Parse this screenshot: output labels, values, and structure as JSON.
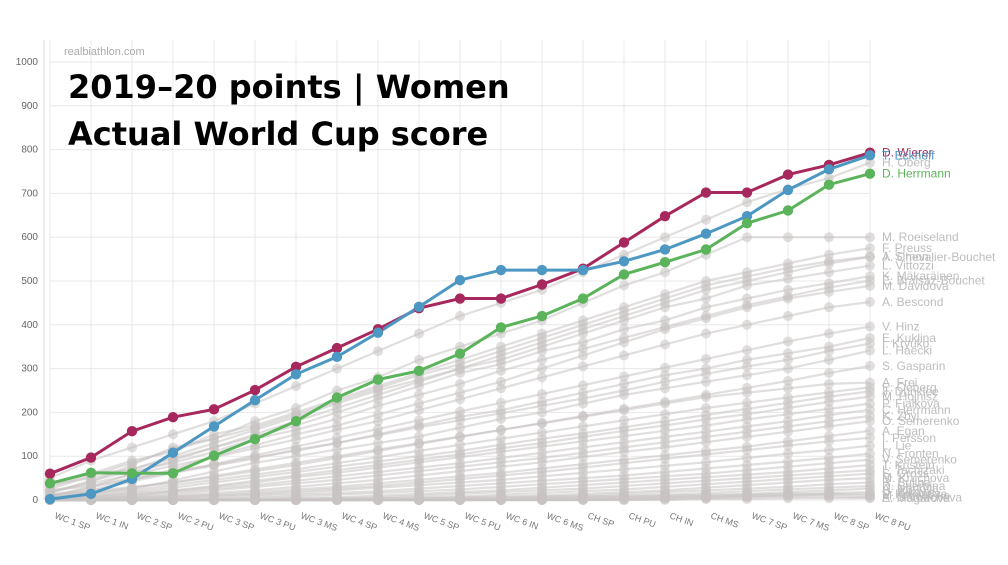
{
  "watermark": "realbiathlon.com",
  "title_line1": "2019–20 points  |  Women",
  "title_line2": "Actual World Cup score",
  "colors": {
    "wierer": "#a7285c",
    "eckhoff": "#4d97c3",
    "herrmann": "#5bb35b",
    "background_series": "#c9c3c3",
    "background_label": "#bdbdbd",
    "grid": "#e8e8e8"
  },
  "chart_data": {
    "type": "line",
    "title": "2019–20 points | Women — Actual World Cup score",
    "xlabel": "",
    "ylabel": "",
    "ylim": [
      0,
      1000
    ],
    "yticks": [
      0,
      100,
      200,
      300,
      400,
      500,
      600,
      700,
      800,
      900,
      1000
    ],
    "grid": true,
    "categories": [
      "WC 1 SP",
      "WC 1 IN",
      "WC 2 SP",
      "WC 2 PU",
      "WC 3 SP",
      "WC 3 PU",
      "WC 3 MS",
      "WC 4 SP",
      "WC 4 MS",
      "WC 5 SP",
      "WC 5 PU",
      "WC 6 IN",
      "WC 6 MS",
      "CH SP",
      "CH PU",
      "CH IN",
      "CH MS",
      "WC 7 SP",
      "WC 7 MS",
      "WC 8 SP",
      "WC 8 PU"
    ],
    "series": [
      {
        "name": "D. Wierer",
        "highlight": true,
        "color": "#a7285c",
        "values": [
          60,
          97,
          157,
          189,
          207,
          251,
          304,
          347,
          390,
          438,
          460,
          460,
          492,
          528,
          588,
          648,
          702,
          702,
          743,
          765,
          793
        ]
      },
      {
        "name": "T. Eckhoff",
        "highlight": true,
        "color": "#4d97c3",
        "values": [
          2,
          14,
          48,
          108,
          168,
          228,
          287,
          327,
          382,
          441,
          502,
          525,
          525,
          525,
          545,
          572,
          608,
          648,
          708,
          755,
          787
        ]
      },
      {
        "name": "D. Herrmann",
        "highlight": true,
        "color": "#5bb35b",
        "values": [
          38,
          62,
          61,
          61,
          101,
          139,
          180,
          234,
          275,
          295,
          334,
          394,
          420,
          460,
          515,
          543,
          572,
          632,
          661,
          720,
          745
        ]
      },
      {
        "name": "H. Öberg",
        "values": [
          50,
          90,
          120,
          150,
          180,
          220,
          260,
          300,
          340,
          380,
          420,
          450,
          480,
          520,
          560,
          600,
          640,
          680,
          710,
          735,
          770
        ]
      },
      {
        "name": "M. Roeiseland",
        "values": [
          20,
          40,
          80,
          120,
          140,
          180,
          210,
          250,
          280,
          320,
          350,
          380,
          410,
          450,
          490,
          520,
          560,
          600,
          600,
          600,
          600
        ]
      },
      {
        "name": "F. Preuss",
        "values": [
          30,
          60,
          90,
          110,
          150,
          170,
          200,
          230,
          260,
          290,
          320,
          350,
          380,
          410,
          440,
          470,
          500,
          520,
          540,
          560,
          575
        ]
      },
      {
        "name": "J. Simon",
        "values": [
          25,
          55,
          85,
          115,
          140,
          165,
          195,
          225,
          255,
          285,
          310,
          340,
          370,
          400,
          430,
          460,
          490,
          510,
          530,
          545,
          556
        ]
      },
      {
        "name": "A. Chevalier-Bouchet",
        "values": [
          40,
          60,
          70,
          100,
          130,
          160,
          190,
          220,
          250,
          275,
          300,
          330,
          360,
          390,
          420,
          450,
          480,
          500,
          520,
          540,
          555
        ]
      },
      {
        "name": "L. Vittozzi",
        "values": [
          10,
          30,
          60,
          90,
          120,
          150,
          180,
          210,
          240,
          270,
          300,
          320,
          350,
          380,
          410,
          440,
          460,
          490,
          505,
          520,
          535
        ]
      },
      {
        "name": "K. Mäkaräinen",
        "values": [
          35,
          50,
          70,
          95,
          120,
          145,
          170,
          200,
          230,
          260,
          290,
          310,
          340,
          360,
          390,
          410,
          440,
          460,
          480,
          495,
          511
        ]
      },
      {
        "name": "E. Braisaz-Bouchet",
        "values": [
          15,
          45,
          65,
          85,
          110,
          140,
          160,
          185,
          215,
          240,
          265,
          295,
          320,
          345,
          370,
          395,
          420,
          445,
          465,
          485,
          501
        ]
      },
      {
        "name": "M. Davidova",
        "values": [
          5,
          20,
          45,
          70,
          100,
          125,
          150,
          170,
          195,
          220,
          245,
          270,
          300,
          330,
          360,
          390,
          415,
          440,
          460,
          475,
          489
        ]
      },
      {
        "name": "A. Bescond",
        "values": [
          18,
          38,
          58,
          78,
          98,
          118,
          138,
          160,
          180,
          205,
          230,
          255,
          280,
          305,
          330,
          355,
          380,
          400,
          420,
          440,
          452
        ]
      },
      {
        "name": "V. Hinz",
        "values": [
          12,
          22,
          42,
          62,
          82,
          102,
          122,
          142,
          162,
          182,
          202,
          222,
          242,
          262,
          282,
          302,
          322,
          342,
          362,
          380,
          396
        ]
      },
      {
        "name": "E. Kuklina",
        "values": [
          8,
          28,
          48,
          62,
          78,
          95,
          115,
          130,
          150,
          170,
          190,
          205,
          225,
          245,
          265,
          285,
          300,
          320,
          335,
          350,
          370
        ]
      },
      {
        "name": "I. Kryuko",
        "values": [
          22,
          32,
          50,
          66,
          80,
          98,
          112,
          130,
          148,
          166,
          182,
          198,
          215,
          232,
          250,
          270,
          288,
          305,
          320,
          340,
          357
        ]
      },
      {
        "name": "L. Haecki",
        "values": [
          5,
          15,
          25,
          45,
          65,
          85,
          100,
          115,
          130,
          145,
          165,
          185,
          200,
          220,
          240,
          255,
          270,
          285,
          300,
          320,
          341
        ]
      },
      {
        "name": "S. Gasparin",
        "values": [
          6,
          16,
          28,
          40,
          52,
          66,
          80,
          96,
          112,
          128,
          144,
          160,
          176,
          192,
          208,
          224,
          240,
          256,
          272,
          290,
          306
        ]
      },
      {
        "name": "A. Frei",
        "values": [
          10,
          20,
          30,
          40,
          55,
          70,
          85,
          100,
          115,
          130,
          145,
          160,
          175,
          190,
          205,
          220,
          235,
          245,
          255,
          265,
          268
        ]
      },
      {
        "name": "E. Oeberg",
        "values": [
          4,
          12,
          22,
          34,
          46,
          58,
          70,
          84,
          98,
          112,
          126,
          140,
          154,
          168,
          182,
          196,
          210,
          222,
          234,
          246,
          257
        ]
      },
      {
        "name": "J. Dunklee",
        "values": [
          2,
          8,
          18,
          28,
          40,
          52,
          64,
          76,
          88,
          100,
          112,
          126,
          140,
          152,
          166,
          180,
          194,
          208,
          222,
          236,
          248
        ]
      },
      {
        "name": "M. Hojnisz",
        "values": [
          3,
          9,
          15,
          22,
          32,
          44,
          56,
          68,
          80,
          92,
          104,
          118,
          130,
          144,
          158,
          170,
          184,
          196,
          210,
          224,
          236
        ]
      },
      {
        "name": "P. Fialkova",
        "values": [
          0,
          6,
          12,
          20,
          30,
          40,
          52,
          62,
          74,
          86,
          98,
          110,
          122,
          134,
          146,
          158,
          170,
          184,
          196,
          208,
          220
        ]
      },
      {
        "name": "C. Herrmann",
        "values": [
          0,
          4,
          10,
          18,
          26,
          34,
          44,
          54,
          64,
          74,
          84,
          96,
          108,
          120,
          132,
          144,
          156,
          168,
          180,
          194,
          206
        ]
      },
      {
        "name": "K. Zbyl",
        "values": [
          0,
          3,
          8,
          14,
          22,
          30,
          38,
          46,
          56,
          66,
          76,
          86,
          96,
          108,
          120,
          132,
          144,
          156,
          168,
          180,
          192
        ]
      },
      {
        "name": "O. Semerenko",
        "values": [
          0,
          2,
          6,
          10,
          16,
          22,
          30,
          38,
          46,
          56,
          66,
          76,
          86,
          98,
          110,
          120,
          132,
          144,
          156,
          168,
          180
        ]
      },
      {
        "name": "A. Egan",
        "values": [
          0,
          0,
          4,
          8,
          12,
          18,
          24,
          30,
          38,
          46,
          54,
          62,
          72,
          82,
          92,
          102,
          112,
          122,
          134,
          146,
          158
        ]
      },
      {
        "name": "I. Persson",
        "values": [
          0,
          0,
          2,
          6,
          10,
          14,
          20,
          26,
          32,
          40,
          48,
          56,
          64,
          74,
          84,
          94,
          104,
          114,
          124,
          134,
          142
        ]
      },
      {
        "name": "L. Lie",
        "values": [
          0,
          0,
          0,
          4,
          8,
          12,
          16,
          22,
          28,
          34,
          40,
          46,
          54,
          62,
          70,
          78,
          86,
          96,
          106,
          114,
          124
        ]
      },
      {
        "name": "N. Fronten",
        "values": [
          0,
          0,
          0,
          2,
          4,
          8,
          12,
          16,
          20,
          26,
          32,
          38,
          44,
          50,
          56,
          64,
          72,
          80,
          88,
          96,
          106
        ]
      },
      {
        "name": "V. Semerenko",
        "values": [
          0,
          0,
          0,
          0,
          2,
          4,
          8,
          12,
          16,
          20,
          24,
          30,
          36,
          42,
          48,
          54,
          60,
          68,
          76,
          84,
          92
        ]
      },
      {
        "name": "T. Kristejn",
        "values": [
          0,
          0,
          0,
          0,
          0,
          2,
          4,
          6,
          10,
          14,
          18,
          22,
          28,
          34,
          40,
          46,
          52,
          58,
          64,
          72,
          80
        ]
      },
      {
        "name": "L. Tachizaki",
        "values": [
          0,
          0,
          0,
          0,
          0,
          0,
          2,
          4,
          6,
          10,
          14,
          18,
          22,
          26,
          32,
          38,
          44,
          50,
          56,
          62,
          68
        ]
      },
      {
        "name": "S. Gross",
        "values": [
          0,
          0,
          0,
          0,
          0,
          0,
          0,
          2,
          4,
          6,
          8,
          12,
          16,
          20,
          24,
          30,
          36,
          42,
          48,
          54,
          60
        ]
      },
      {
        "name": "M. Kruchova",
        "values": [
          0,
          0,
          0,
          0,
          0,
          0,
          0,
          0,
          2,
          4,
          6,
          8,
          10,
          14,
          18,
          22,
          28,
          34,
          40,
          46,
          50
        ]
      },
      {
        "name": "R. Bulina",
        "values": [
          0,
          0,
          0,
          0,
          0,
          0,
          0,
          0,
          0,
          2,
          4,
          6,
          8,
          10,
          14,
          18,
          22,
          26,
          30,
          36,
          40
        ]
      },
      {
        "name": "D. Sherbina",
        "values": [
          0,
          0,
          0,
          0,
          0,
          0,
          0,
          0,
          0,
          0,
          2,
          4,
          6,
          8,
          10,
          12,
          16,
          20,
          24,
          28,
          32
        ]
      },
      {
        "name": "A. Ivanova",
        "values": [
          0,
          0,
          0,
          0,
          0,
          0,
          0,
          0,
          0,
          0,
          0,
          2,
          4,
          6,
          8,
          10,
          12,
          14,
          18,
          22,
          26
        ]
      },
      {
        "name": "U. Bikovic",
        "values": [
          0,
          0,
          0,
          0,
          0,
          0,
          0,
          0,
          0,
          0,
          0,
          0,
          2,
          4,
          6,
          8,
          10,
          12,
          14,
          16,
          18
        ]
      },
      {
        "name": "P. Koljasova",
        "values": [
          0,
          0,
          0,
          0,
          0,
          0,
          0,
          0,
          0,
          0,
          0,
          0,
          0,
          2,
          4,
          6,
          8,
          10,
          12,
          14,
          14
        ]
      },
      {
        "name": "M. Mezheiko",
        "values": [
          0,
          0,
          0,
          0,
          0,
          0,
          0,
          0,
          0,
          0,
          0,
          0,
          0,
          0,
          2,
          4,
          6,
          8,
          10,
          12,
          10
        ]
      },
      {
        "name": "A. Gorbacheva",
        "values": [
          0,
          0,
          0,
          0,
          0,
          0,
          0,
          0,
          0,
          0,
          0,
          0,
          0,
          0,
          0,
          2,
          4,
          6,
          8,
          8,
          6
        ]
      },
      {
        "name": "E. Magarova",
        "values": [
          0,
          0,
          0,
          0,
          0,
          0,
          0,
          0,
          0,
          0,
          0,
          0,
          0,
          0,
          0,
          0,
          2,
          2,
          4,
          4,
          4
        ]
      }
    ]
  }
}
